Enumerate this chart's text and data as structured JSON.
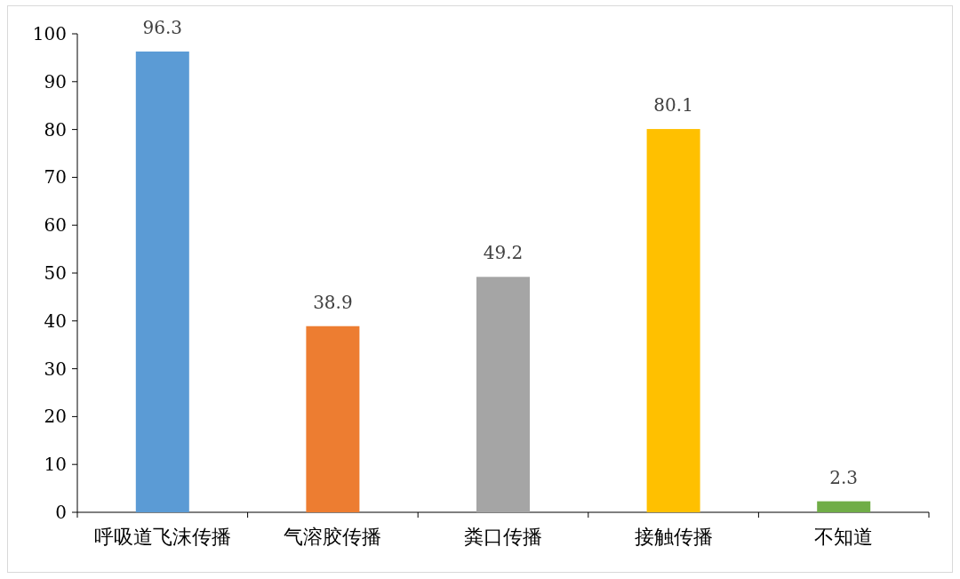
{
  "chart_data": {
    "type": "bar",
    "categories": [
      "呼吸道飞沫传播",
      "气溶胶传播",
      "粪口传播",
      "接触传播",
      "不知道"
    ],
    "values": [
      96.3,
      38.9,
      49.2,
      80.1,
      2.3
    ],
    "colors": [
      "#5b9bd5",
      "#ed7d31",
      "#a5a5a5",
      "#ffc000",
      "#70ad47"
    ],
    "ylim": [
      0,
      100
    ],
    "yticks": [
      0,
      10,
      20,
      30,
      40,
      50,
      60,
      70,
      80,
      90,
      100
    ],
    "data_labels": true
  }
}
